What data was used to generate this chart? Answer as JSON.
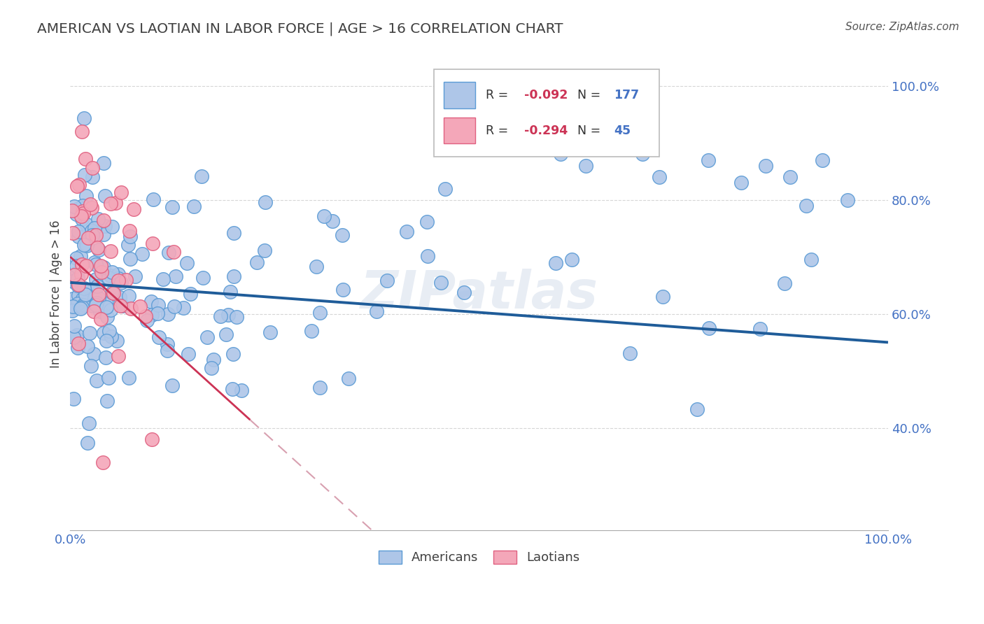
{
  "title": "AMERICAN VS LAOTIAN IN LABOR FORCE | AGE > 16 CORRELATION CHART",
  "source_text": "Source: ZipAtlas.com",
  "ylabel": "In Labor Force | Age > 16",
  "xlim": [
    0.0,
    1.0
  ],
  "ylim": [
    0.22,
    1.05
  ],
  "ytick_positions": [
    0.4,
    0.6,
    0.8,
    1.0
  ],
  "yticklabels": [
    "40.0%",
    "60.0%",
    "80.0%",
    "100.0%"
  ],
  "legend_r_american": "-0.092",
  "legend_n_american": "177",
  "legend_r_laotian": "-0.294",
  "legend_n_laotian": "45",
  "watermark": "ZIPatlas",
  "american_color": "#aec6e8",
  "american_edge_color": "#5b9bd5",
  "laotian_color": "#f4a7b9",
  "laotian_edge_color": "#e06080",
  "trend_american_color": "#1f5c99",
  "trend_laotian_color": "#cc3355",
  "trend_laotian_dash_color": "#d8a0b0",
  "grid_color": "#cccccc",
  "title_color": "#404040",
  "axis_label_color": "#4472c4",
  "legend_r_color": "#cc3355",
  "legend_n_color": "#4472c4"
}
